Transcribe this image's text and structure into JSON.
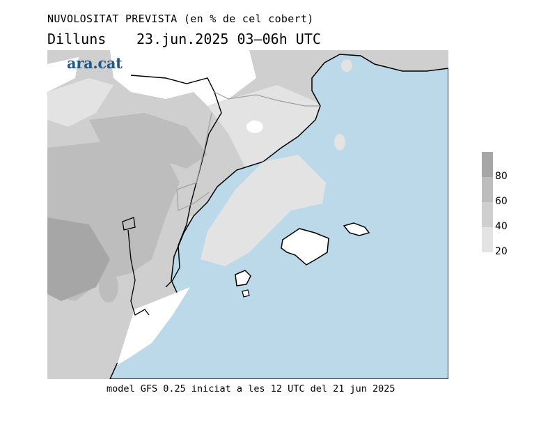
{
  "header": {
    "title": "NUVOLOSITAT PREVISTA (en % de cel cobert)",
    "day": "Dilluns",
    "datetime": "23.jun.2025 03–06h UTC"
  },
  "logo": {
    "text": "ara.cat",
    "color": "#1f5a8c"
  },
  "footer": {
    "text": "model GFS 0.25 iniciat a les 12 UTC del 21 jun 2025"
  },
  "legend": {
    "labels": [
      "80",
      "60",
      "40",
      "20"
    ],
    "colors": [
      "#a6a6a6",
      "#bdbdbd",
      "#cfcfcf",
      "#e3e3e3"
    ]
  },
  "colors": {
    "sea": "#bcd9ea",
    "coast": "#000000",
    "border": "#a0a0a0"
  }
}
